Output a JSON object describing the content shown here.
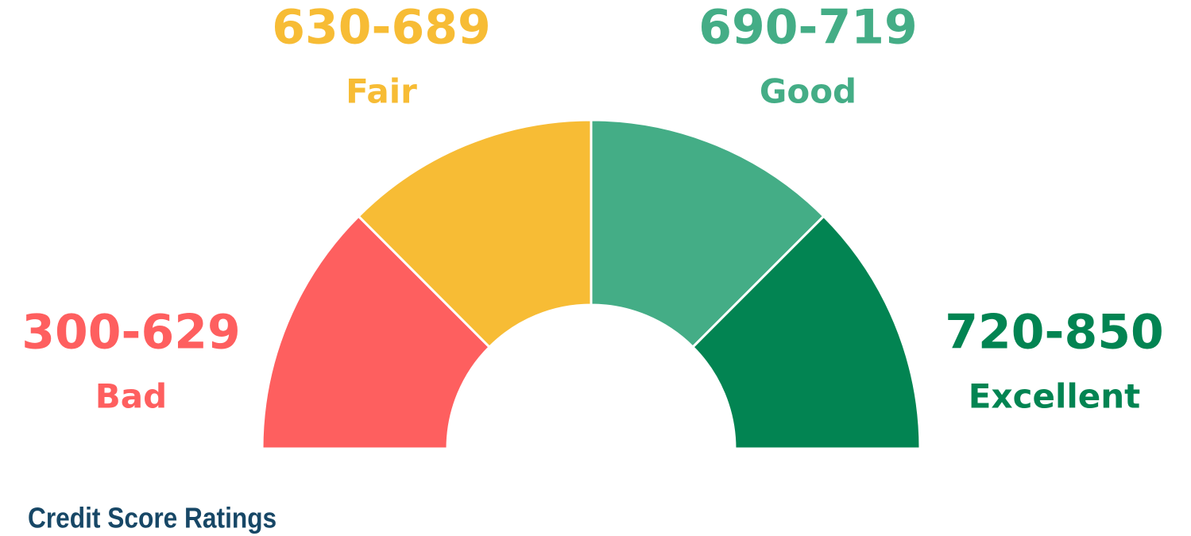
{
  "segments": [
    {
      "range": "300-629",
      "label": "Bad",
      "color": "#fe5f5f"
    },
    {
      "range": "630-689",
      "label": "Fair",
      "color": "#f7bc35"
    },
    {
      "range": "690-719",
      "label": "Good",
      "color": "#44ad86"
    },
    {
      "range": "720-850",
      "label": "Excellent",
      "color": "#028452"
    }
  ],
  "caption": "Credit Score Ratings",
  "caption_color": "#174766"
}
